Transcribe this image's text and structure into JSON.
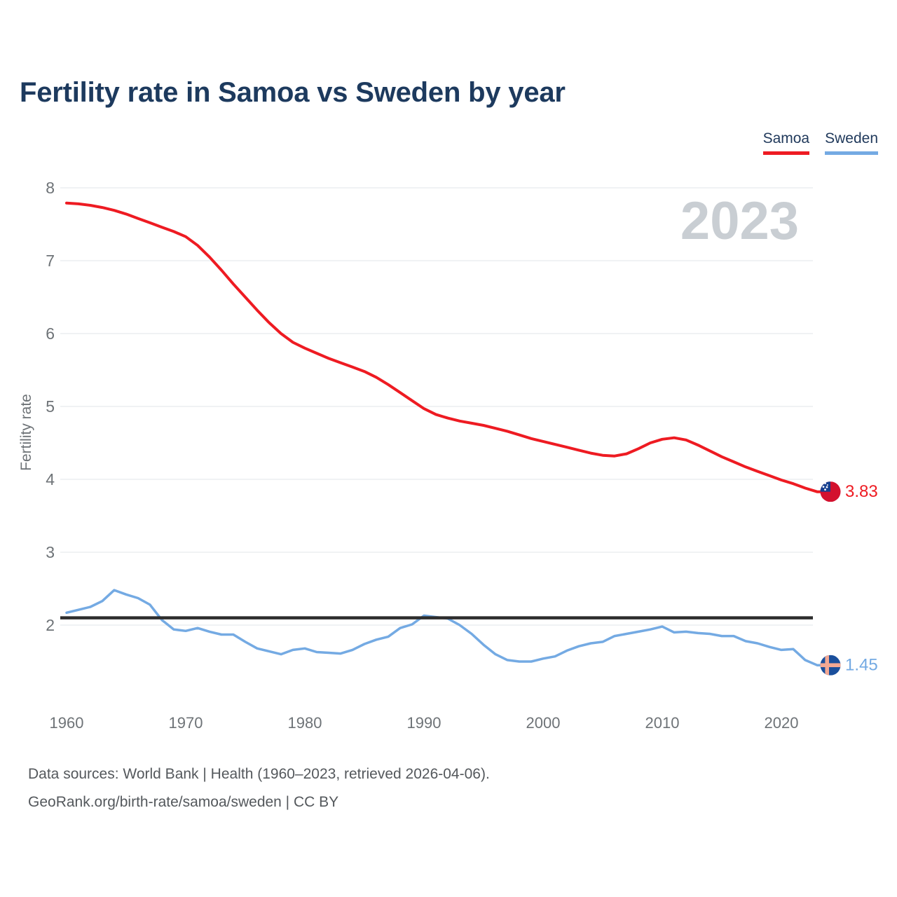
{
  "header": {
    "title": "Fertility rate in Samoa vs Sweden by year"
  },
  "legend": [
    {
      "label": "Samoa",
      "color": "#ee1b22"
    },
    {
      "label": "Sweden",
      "color": "#74aae3"
    }
  ],
  "watermark": "2023",
  "chart_data": {
    "type": "line",
    "title": "Fertility rate in Samoa vs Sweden by year",
    "xlabel": "",
    "ylabel": "Fertility rate",
    "grid": "horizontal",
    "legend_position": "top-right",
    "ylim": [
      1.0,
      8.3
    ],
    "yticks": [
      2,
      3,
      4,
      5,
      6,
      7,
      8
    ],
    "xticks": [
      1960,
      1970,
      1980,
      1990,
      2000,
      2010,
      2020
    ],
    "x": [
      1960,
      1961,
      1962,
      1963,
      1964,
      1965,
      1966,
      1967,
      1968,
      1969,
      1970,
      1971,
      1972,
      1973,
      1974,
      1975,
      1976,
      1977,
      1978,
      1979,
      1980,
      1981,
      1982,
      1983,
      1984,
      1985,
      1986,
      1987,
      1988,
      1989,
      1990,
      1991,
      1992,
      1993,
      1994,
      1995,
      1996,
      1997,
      1998,
      1999,
      2000,
      2001,
      2002,
      2003,
      2004,
      2005,
      2006,
      2007,
      2008,
      2009,
      2010,
      2011,
      2012,
      2013,
      2014,
      2015,
      2016,
      2017,
      2018,
      2019,
      2020,
      2021,
      2022,
      2023
    ],
    "series": [
      {
        "name": "Samoa",
        "color": "#ee1b22",
        "end_label": "3.83",
        "end_value": 3.83,
        "flag": "samoa",
        "flag_colors": {
          "field": "#d3112e",
          "canton": "#163f8f",
          "stars": "#ffffff"
        },
        "values": [
          7.79,
          7.78,
          7.76,
          7.73,
          7.69,
          7.64,
          7.58,
          7.52,
          7.46,
          7.4,
          7.33,
          7.21,
          7.05,
          6.87,
          6.68,
          6.5,
          6.32,
          6.15,
          6.0,
          5.88,
          5.8,
          5.73,
          5.66,
          5.6,
          5.54,
          5.48,
          5.4,
          5.3,
          5.19,
          5.08,
          4.97,
          4.89,
          4.84,
          4.8,
          4.77,
          4.74,
          4.7,
          4.66,
          4.61,
          4.56,
          4.52,
          4.48,
          4.44,
          4.4,
          4.36,
          4.33,
          4.32,
          4.35,
          4.42,
          4.5,
          4.55,
          4.57,
          4.54,
          4.47,
          4.39,
          4.31,
          4.24,
          4.17,
          4.11,
          4.05,
          3.99,
          3.94,
          3.88,
          3.83
        ]
      },
      {
        "name": "Sweden",
        "color": "#74aae3",
        "end_label": "1.45",
        "end_value": 1.45,
        "flag": "sweden",
        "flag_colors": {
          "field": "#1a4f9c",
          "cross": "#f3a893"
        },
        "values": [
          2.17,
          2.21,
          2.25,
          2.33,
          2.48,
          2.42,
          2.37,
          2.28,
          2.07,
          1.94,
          1.92,
          1.96,
          1.91,
          1.87,
          1.87,
          1.77,
          1.68,
          1.64,
          1.6,
          1.66,
          1.68,
          1.63,
          1.62,
          1.61,
          1.66,
          1.74,
          1.8,
          1.84,
          1.96,
          2.01,
          2.13,
          2.11,
          2.09,
          2.0,
          1.88,
          1.73,
          1.6,
          1.52,
          1.5,
          1.5,
          1.54,
          1.57,
          1.65,
          1.71,
          1.75,
          1.77,
          1.85,
          1.88,
          1.91,
          1.94,
          1.98,
          1.9,
          1.91,
          1.89,
          1.88,
          1.85,
          1.85,
          1.78,
          1.75,
          1.7,
          1.66,
          1.67,
          1.52,
          1.45
        ]
      }
    ],
    "reference_line": {
      "value": 2.1,
      "color": "#2d2d2d"
    }
  },
  "footer": {
    "line1": "Data sources: World Bank | Health (1960–2023, retrieved 2026-04-06).",
    "line2": "GeoRank.org/birth-rate/samoa/sweden | CC BY"
  },
  "colors": {
    "title": "#1d3a5e",
    "grid": "#e8eaed",
    "tick": "#6e7377",
    "watermark": "#c9ced3",
    "footer": "#54585c"
  }
}
